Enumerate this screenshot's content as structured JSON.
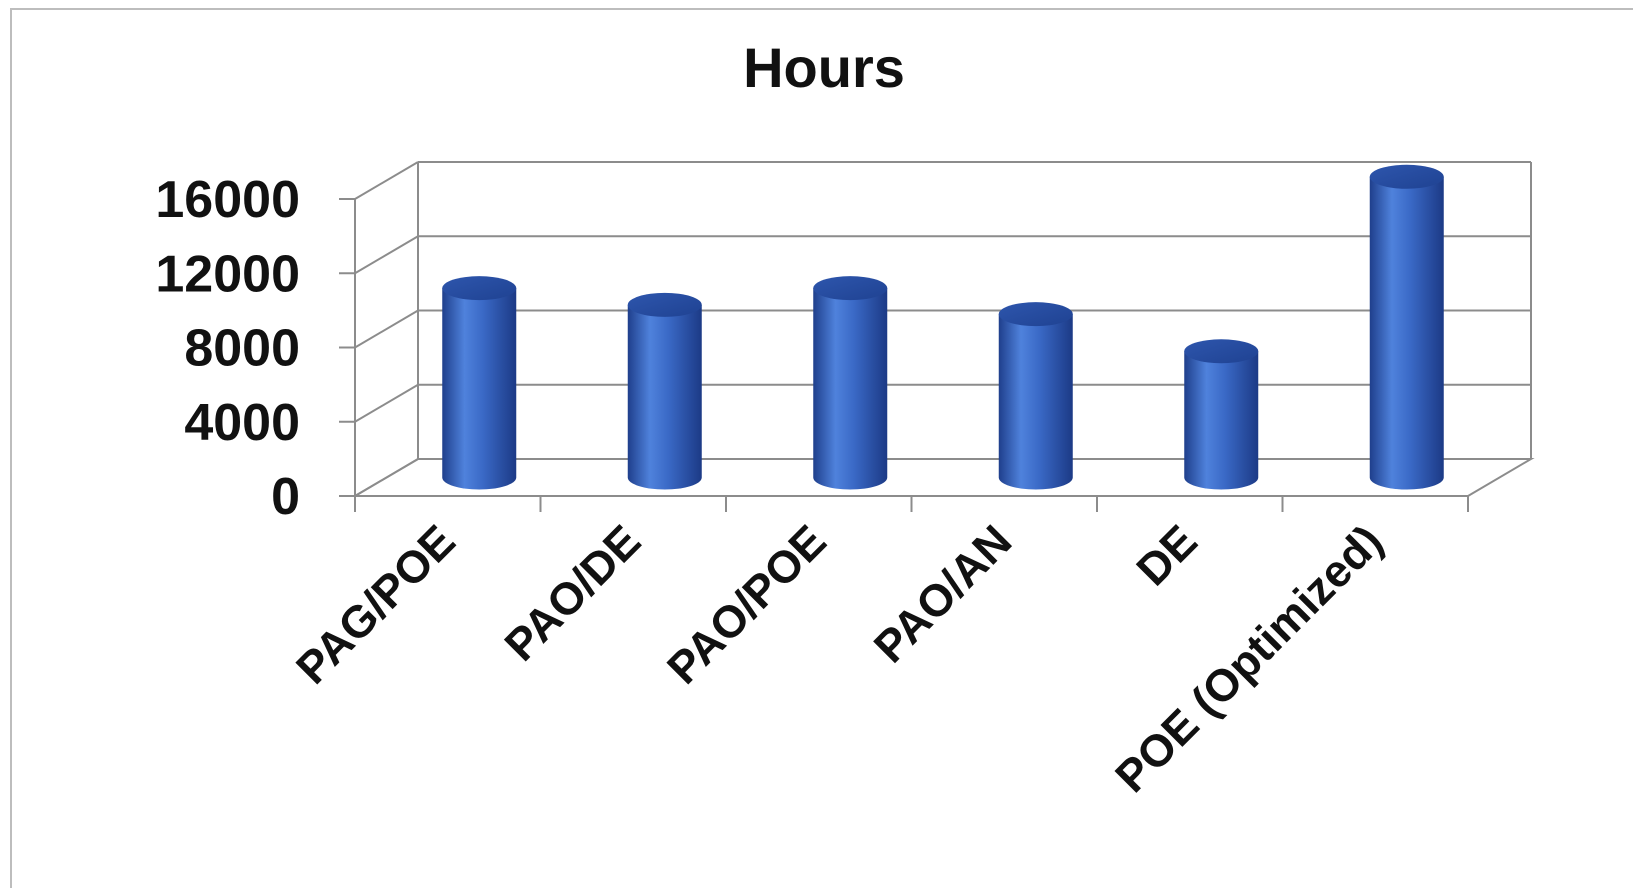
{
  "chart_data": {
    "type": "bar",
    "title": "Hours",
    "categories": [
      "PAG/POE",
      "PAO/DE",
      "PAO/POE",
      "PAO/AN",
      "DE",
      "POE (Optimized)"
    ],
    "values": [
      10200,
      9300,
      10200,
      8800,
      6800,
      16200
    ],
    "yticks": [
      "0",
      "4000",
      "8000",
      "12000",
      "16000"
    ],
    "ylim": [
      0,
      16000
    ],
    "grid": true,
    "style": "3d-cylinder",
    "bar_color": "#3a67c4"
  }
}
